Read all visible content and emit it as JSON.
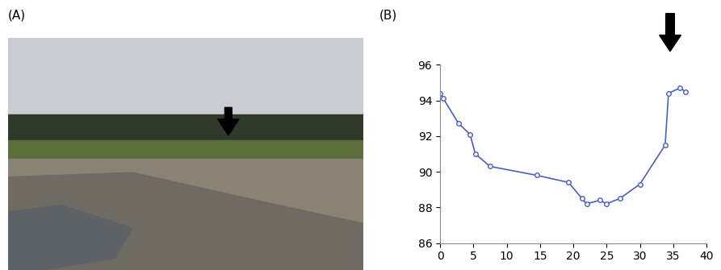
{
  "photo": {
    "label": "(A)"
  },
  "chart_data": {
    "type": "line",
    "title": "(B)",
    "x": [
      0,
      0.5,
      2.8,
      4.5,
      5.3,
      7.5,
      14.5,
      19.3,
      21.3,
      22,
      24,
      25,
      27,
      30,
      33.8,
      34.3,
      36,
      36.8
    ],
    "values": [
      94.4,
      94.1,
      92.7,
      92.1,
      91.0,
      90.3,
      89.8,
      89.4,
      88.5,
      88.2,
      88.4,
      88.2,
      88.5,
      89.3,
      91.5,
      94.4,
      94.7,
      94.5
    ],
    "color": "#4a5fc1",
    "marker": "o",
    "line_style": "solid",
    "xlim": [
      0,
      40
    ],
    "xticks": [
      0,
      5,
      10,
      15,
      20,
      25,
      30,
      35,
      40
    ],
    "ylim": [
      86,
      96
    ],
    "yticks": [
      86,
      88,
      90,
      92,
      94,
      96
    ],
    "grid": false
  }
}
